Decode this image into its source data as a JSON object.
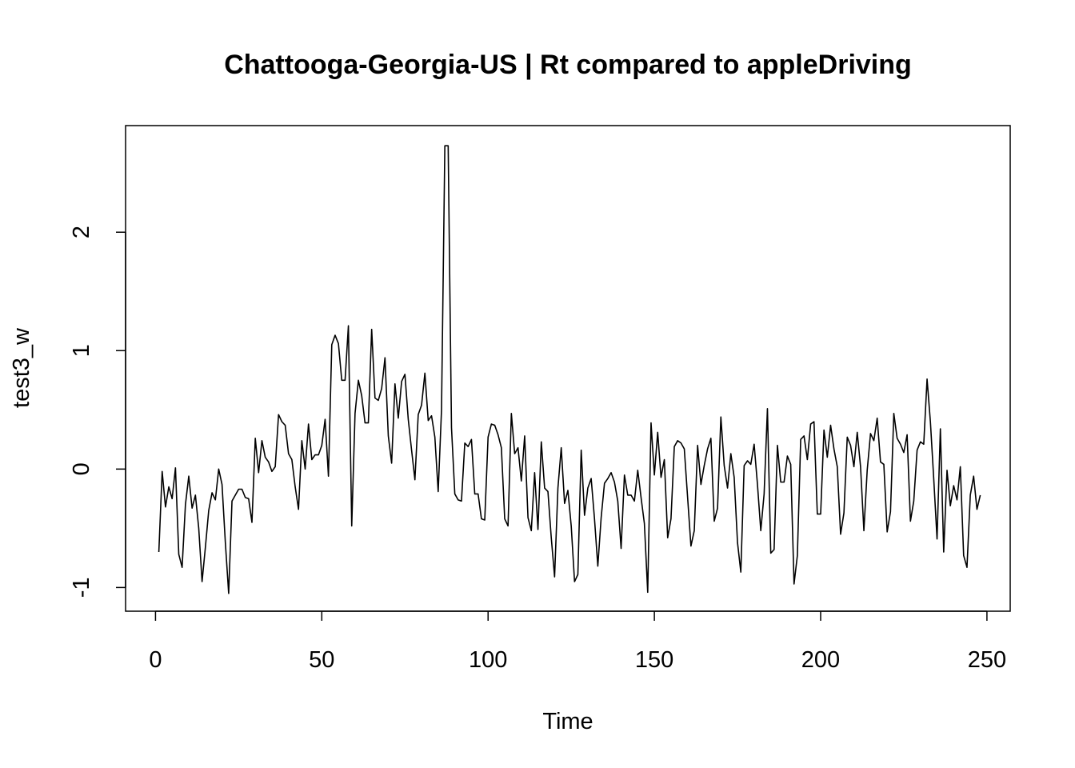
{
  "chart_data": {
    "type": "line",
    "title": "Chattooga-Georgia-US | Rt compared to appleDriving",
    "xlabel": "Time",
    "ylabel": "test3_w",
    "xlim": [
      -9,
      257
    ],
    "ylim": [
      -1.2,
      2.9
    ],
    "xticks": [
      0,
      50,
      100,
      150,
      200,
      250
    ],
    "yticks": [
      -1,
      0,
      1,
      2
    ],
    "grid": false,
    "series": [
      {
        "x": [
          1,
          2,
          3,
          4,
          5,
          6,
          7,
          8,
          9,
          10,
          11,
          12,
          13,
          14,
          15,
          16,
          17,
          18,
          19,
          20,
          21,
          22,
          23,
          24,
          25,
          26,
          27,
          28,
          29,
          30,
          31,
          32,
          33,
          34,
          35,
          36,
          37,
          38,
          39,
          40,
          41,
          42,
          43,
          44,
          45,
          46,
          47,
          48,
          49,
          50,
          51,
          52,
          53,
          54,
          55,
          56,
          57,
          58,
          59,
          60,
          61,
          62,
          63,
          64,
          65,
          66,
          67,
          68,
          69,
          70,
          71,
          72,
          73,
          74,
          75,
          76,
          77,
          78,
          79,
          80,
          81,
          82,
          83,
          84,
          85,
          86,
          87,
          88,
          89,
          90,
          91,
          92,
          93,
          94,
          95,
          96,
          97,
          98,
          99,
          100,
          101,
          102,
          103,
          104,
          105,
          106,
          107,
          108,
          109,
          110,
          111,
          112,
          113,
          114,
          115,
          116,
          117,
          118,
          119,
          120,
          121,
          122,
          123,
          124,
          125,
          126,
          127,
          128,
          129,
          130,
          131,
          132,
          133,
          134,
          135,
          136,
          137,
          138,
          139,
          140,
          141,
          142,
          143,
          144,
          145,
          146,
          147,
          148,
          149,
          150,
          151,
          152,
          153,
          154,
          155,
          156,
          157,
          158,
          159,
          160,
          161,
          162,
          163,
          164,
          165,
          166,
          167,
          168,
          169,
          170,
          171,
          172,
          173,
          174,
          175,
          176,
          177,
          178,
          179,
          180,
          181,
          182,
          183,
          184,
          185,
          186,
          187,
          188,
          189,
          190,
          191,
          192,
          193,
          194,
          195,
          196,
          197,
          198,
          199,
          200,
          201,
          202,
          203,
          204,
          205,
          206,
          207,
          208,
          209,
          210,
          211,
          212,
          213,
          214,
          215,
          216,
          217,
          218,
          219,
          220,
          221,
          222,
          223,
          224,
          225,
          226,
          227,
          228,
          229,
          230,
          231,
          232,
          233,
          234,
          235,
          236,
          237,
          238,
          239,
          240,
          241,
          242,
          243,
          244,
          245,
          246,
          247,
          248
        ],
        "values": [
          -0.7,
          -0.02,
          -0.32,
          -0.15,
          -0.25,
          0.01,
          -0.72,
          -0.83,
          -0.3,
          -0.06,
          -0.33,
          -0.22,
          -0.5,
          -0.95,
          -0.66,
          -0.35,
          -0.2,
          -0.26,
          0.0,
          -0.13,
          -0.62,
          -1.05,
          -0.27,
          -0.22,
          -0.17,
          -0.17,
          -0.24,
          -0.25,
          -0.45,
          0.26,
          -0.03,
          0.24,
          0.1,
          0.06,
          -0.02,
          0.02,
          0.46,
          0.4,
          0.37,
          0.13,
          0.08,
          -0.15,
          -0.34,
          0.24,
          0.0,
          0.38,
          0.08,
          0.12,
          0.12,
          0.2,
          0.42,
          -0.06,
          1.05,
          1.13,
          1.06,
          0.75,
          0.75,
          1.21,
          -0.48,
          0.47,
          0.75,
          0.62,
          0.39,
          0.39,
          1.18,
          0.6,
          0.58,
          0.68,
          0.94,
          0.28,
          0.05,
          0.72,
          0.43,
          0.74,
          0.8,
          0.42,
          0.16,
          -0.09,
          0.46,
          0.54,
          0.81,
          0.41,
          0.45,
          0.27,
          -0.19,
          0.5,
          2.73,
          2.73,
          0.35,
          -0.21,
          -0.26,
          -0.27,
          0.22,
          0.19,
          0.25,
          -0.21,
          -0.21,
          -0.42,
          -0.43,
          0.27,
          0.38,
          0.37,
          0.29,
          0.18,
          -0.42,
          -0.48,
          0.47,
          0.13,
          0.18,
          -0.1,
          0.28,
          -0.41,
          -0.52,
          -0.03,
          -0.51,
          0.23,
          -0.16,
          -0.19,
          -0.58,
          -0.91,
          -0.16,
          0.18,
          -0.29,
          -0.18,
          -0.48,
          -0.95,
          -0.89,
          0.16,
          -0.39,
          -0.16,
          -0.08,
          -0.42,
          -0.82,
          -0.41,
          -0.12,
          -0.08,
          -0.03,
          -0.11,
          -0.27,
          -0.67,
          -0.05,
          -0.22,
          -0.22,
          -0.27,
          -0.01,
          -0.24,
          -0.46,
          -1.04,
          0.39,
          -0.05,
          0.31,
          -0.07,
          0.08,
          -0.58,
          -0.42,
          0.19,
          0.24,
          0.22,
          0.17,
          -0.24,
          -0.65,
          -0.52,
          0.2,
          -0.13,
          0.03,
          0.17,
          0.26,
          -0.44,
          -0.33,
          0.44,
          0.03,
          -0.16,
          0.13,
          -0.07,
          -0.62,
          -0.87,
          0.03,
          0.07,
          0.04,
          0.21,
          -0.13,
          -0.52,
          -0.21,
          0.51,
          -0.71,
          -0.68,
          0.2,
          -0.11,
          -0.11,
          0.11,
          0.04,
          -0.97,
          -0.73,
          0.25,
          0.28,
          0.08,
          0.38,
          0.4,
          -0.38,
          -0.38,
          0.33,
          0.1,
          0.37,
          0.17,
          0.02,
          -0.55,
          -0.37,
          0.27,
          0.2,
          0.02,
          0.31,
          0.02,
          -0.52,
          -0.01,
          0.3,
          0.24,
          0.43,
          0.06,
          0.04,
          -0.53,
          -0.36,
          0.47,
          0.26,
          0.21,
          0.14,
          0.29,
          -0.44,
          -0.27,
          0.16,
          0.23,
          0.21,
          0.76,
          0.4,
          -0.08,
          -0.59,
          0.34,
          -0.7,
          -0.01,
          -0.31,
          -0.14,
          -0.26,
          0.02,
          -0.73,
          -0.83,
          -0.22,
          -0.06,
          -0.34,
          -0.22
        ]
      }
    ]
  }
}
